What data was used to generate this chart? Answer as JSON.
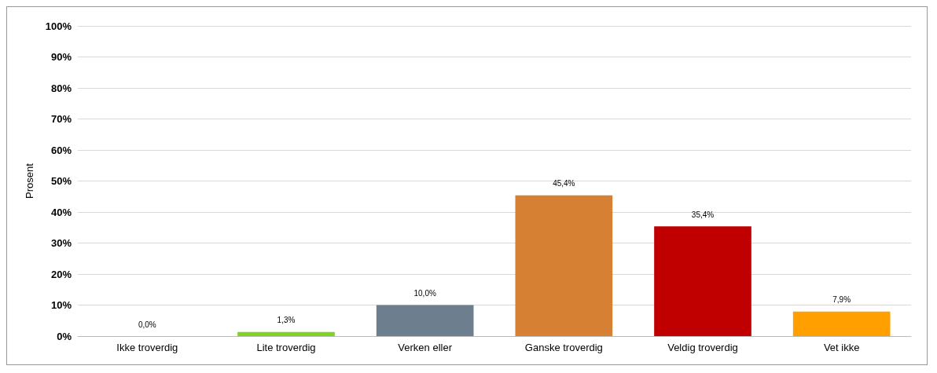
{
  "chart_data": {
    "type": "bar",
    "ylabel": "Prosent",
    "categories": [
      "Ikke troverdig",
      "Lite troverdig",
      "Verken eller",
      "Ganske troverdig",
      "Veldig troverdig",
      "Vet ikke"
    ],
    "values": [
      0,
      1.3,
      10,
      45.4,
      35.4,
      7.9
    ],
    "colors": [
      "#7f7f7f",
      "#7ed321",
      "#6d7f8f",
      "#d58032",
      "#c00000",
      "#ffa000"
    ],
    "value_labels": [
      "0,0%",
      "1,3%",
      "10,0%",
      "45,4%",
      "35,4%",
      "7,9%"
    ],
    "ylim": [
      0,
      100
    ],
    "yticks": [
      {
        "value": 0,
        "label": "0%"
      },
      {
        "value": 10,
        "label": "10%"
      },
      {
        "value": 20,
        "label": "20%"
      },
      {
        "value": 30,
        "label": "30%"
      },
      {
        "value": 40,
        "label": "40%"
      },
      {
        "value": 50,
        "label": "50%"
      },
      {
        "value": 60,
        "label": "60%"
      },
      {
        "value": 70,
        "label": "70%"
      },
      {
        "value": 80,
        "label": "80%"
      },
      {
        "value": 90,
        "label": "90%"
      },
      {
        "value": 100,
        "label": "100%"
      }
    ],
    "grid": "y"
  }
}
